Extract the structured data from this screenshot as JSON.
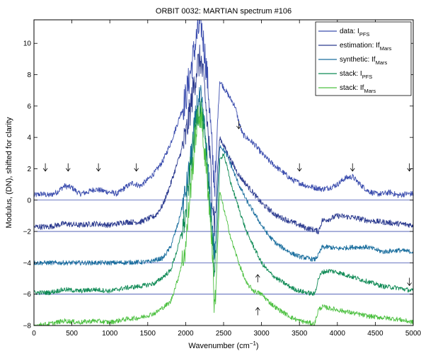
{
  "chart_data": {
    "type": "line",
    "title": "ORBIT 0032: MARTIAN spectrum #106",
    "xlabel": "Wavenumber (cm−1)",
    "xlabel_parts": {
      "main": "Wavenumber (cm",
      "sup": "−1",
      "close": ")"
    },
    "ylabel": "Modulus, (DN), shifted for clarity",
    "xlim": [
      0,
      5000
    ],
    "ylim": [
      -8,
      11.5
    ],
    "xticks": [
      0,
      500,
      1000,
      1500,
      2000,
      2500,
      3000,
      3500,
      4000,
      4500,
      5000
    ],
    "yticks": [
      -8,
      -6,
      -4,
      -2,
      0,
      2,
      4,
      6,
      8,
      10
    ],
    "grid": false,
    "legend_position": "top-right",
    "legend": [
      {
        "text": "data: I",
        "sub": "PFS",
        "color": "#3b4dae"
      },
      {
        "text": "estimation: If",
        "sub": "Mars",
        "color": "#2b3a8f"
      },
      {
        "text": "synthetic: If",
        "sub": "Mars",
        "color": "#1a6e9e"
      },
      {
        "text": "stack: I",
        "sub": "PFS",
        "color": "#0f8a55"
      },
      {
        "text": "stack: If",
        "sub": "Mars",
        "color": "#4cc040"
      }
    ],
    "baselines": [
      0,
      -2,
      -4,
      -6
    ],
    "baseline_color": "#3b4dae",
    "series": [
      {
        "color": "#3b4dae",
        "noise": 0.18,
        "x": [
          0,
          100,
          200,
          300,
          400,
          500,
          600,
          700,
          800,
          900,
          1000,
          1100,
          1200,
          1300,
          1400,
          1500,
          1600,
          1700,
          1800,
          1900,
          2000,
          2050,
          2100,
          2150,
          2200,
          2250,
          2300,
          2350,
          2380,
          2400,
          2420,
          2450,
          2500,
          2550,
          2600,
          2650,
          2700,
          2750,
          2800,
          2900,
          3000,
          3100,
          3200,
          3300,
          3400,
          3500,
          3600,
          3700,
          3800,
          3900,
          4000,
          4100,
          4200,
          4300,
          4400,
          4500,
          4600,
          4700,
          4800,
          4900,
          5000
        ],
        "y": [
          0.3,
          0.4,
          0.3,
          0.5,
          0.9,
          0.8,
          0.4,
          0.5,
          0.7,
          0.6,
          0.5,
          0.4,
          0.8,
          1.1,
          0.9,
          1.3,
          1.8,
          2.5,
          3.6,
          5.0,
          6.5,
          7.8,
          9.2,
          10.5,
          11.4,
          9.5,
          7.0,
          3.0,
          1.0,
          2.0,
          5.0,
          7.6,
          7.2,
          6.8,
          6.4,
          6.0,
          5.0,
          4.2,
          4.0,
          3.6,
          3.0,
          2.5,
          2.1,
          1.7,
          1.3,
          1.1,
          0.9,
          0.8,
          0.7,
          0.8,
          1.0,
          1.4,
          1.5,
          1.0,
          0.6,
          0.4,
          0.4,
          0.5,
          0.3,
          0.4,
          0.4
        ]
      },
      {
        "color": "#2b3a8f",
        "noise": 0.18,
        "x": [
          0,
          200,
          400,
          600,
          800,
          1000,
          1200,
          1400,
          1600,
          1700,
          1800,
          1900,
          2000,
          2050,
          2100,
          2150,
          2200,
          2250,
          2300,
          2350,
          2380,
          2400,
          2420,
          2450,
          2500,
          2550,
          2600,
          2700,
          2800,
          2900,
          3000,
          3100,
          3200,
          3300,
          3400,
          3500,
          3600,
          3700,
          3750,
          3800,
          3900,
          4000,
          4200,
          4400,
          4600,
          4800,
          5000
        ],
        "y": [
          -1.7,
          -1.7,
          -1.5,
          -1.6,
          -1.5,
          -1.6,
          -1.4,
          -1.4,
          -1.0,
          -0.3,
          1.0,
          2.5,
          4.0,
          5.5,
          7.0,
          8.5,
          9.0,
          7.0,
          4.0,
          0.5,
          -1.5,
          -0.5,
          2.0,
          4.0,
          3.5,
          3.0,
          2.5,
          1.6,
          1.0,
          0.4,
          -0.2,
          -0.6,
          -1.0,
          -1.2,
          -1.4,
          -1.6,
          -1.8,
          -1.9,
          -2.0,
          -1.3,
          -1.2,
          -1.0,
          -1.1,
          -1.3,
          -1.4,
          -1.5,
          -1.6
        ]
      },
      {
        "color": "#1a6e9e",
        "noise": 0.15,
        "x": [
          0,
          500,
          1000,
          1500,
          1700,
          1800,
          1900,
          2000,
          2050,
          2100,
          2150,
          2200,
          2250,
          2300,
          2350,
          2380,
          2400,
          2420,
          2450,
          2500,
          2550,
          2600,
          2700,
          2800,
          2900,
          3000,
          3100,
          3200,
          3300,
          3400,
          3500,
          3600,
          3700,
          3750,
          3800,
          3900,
          4000,
          4200,
          4400,
          4600,
          4800,
          5000
        ],
        "y": [
          -4.0,
          -4.0,
          -4.0,
          -3.95,
          -3.7,
          -3.0,
          -1.5,
          0.5,
          2.0,
          4.0,
          6.0,
          6.5,
          4.5,
          1.5,
          -1.5,
          -3.5,
          -2.0,
          0.5,
          3.5,
          3.2,
          2.8,
          2.2,
          1.0,
          0.0,
          -0.8,
          -1.6,
          -2.3,
          -2.8,
          -3.1,
          -3.4,
          -3.6,
          -3.7,
          -3.8,
          -3.5,
          -3.0,
          -3.0,
          -3.1,
          -3.0,
          -3.0,
          -3.3,
          -3.2,
          -3.3
        ]
      },
      {
        "color": "#0f8a55",
        "noise": 0.15,
        "x": [
          0,
          200,
          400,
          600,
          800,
          1000,
          1200,
          1400,
          1600,
          1800,
          1900,
          2000,
          2050,
          2100,
          2150,
          2200,
          2250,
          2300,
          2350,
          2380,
          2400,
          2420,
          2450,
          2500,
          2550,
          2600,
          2700,
          2800,
          2900,
          3000,
          3100,
          3200,
          3300,
          3400,
          3500,
          3600,
          3700,
          3750,
          3800,
          3900,
          4000,
          4200,
          4400,
          4600,
          4800,
          5000
        ],
        "y": [
          -5.9,
          -5.9,
          -5.7,
          -5.8,
          -5.7,
          -5.8,
          -5.6,
          -5.5,
          -5.3,
          -4.5,
          -3.0,
          -1.0,
          1.5,
          3.5,
          5.5,
          6.0,
          4.0,
          1.0,
          -2.0,
          -5.0,
          -3.5,
          -1.5,
          2.5,
          3.0,
          2.0,
          1.0,
          -0.5,
          -2.0,
          -3.0,
          -4.0,
          -4.6,
          -5.0,
          -5.3,
          -5.6,
          -5.8,
          -5.9,
          -6.0,
          -5.0,
          -4.6,
          -4.5,
          -4.6,
          -4.9,
          -5.2,
          -5.5,
          -5.6,
          -5.8
        ]
      },
      {
        "color": "#4cc040",
        "noise": 0.15,
        "x": [
          0,
          200,
          400,
          600,
          800,
          1000,
          1200,
          1400,
          1600,
          1800,
          1900,
          2000,
          2050,
          2100,
          2150,
          2200,
          2250,
          2300,
          2350,
          2380,
          2400,
          2420,
          2450,
          2500,
          2550,
          2600,
          2700,
          2800,
          2900,
          3000,
          3100,
          3200,
          3300,
          3400,
          3500,
          3600,
          3700,
          3750,
          3800,
          3900,
          4000,
          4200,
          4400,
          4600,
          4800,
          5000
        ],
        "y": [
          -8.0,
          -7.9,
          -7.7,
          -7.8,
          -7.7,
          -7.8,
          -7.6,
          -7.5,
          -7.2,
          -6.5,
          -5.0,
          -3.0,
          0.0,
          2.5,
          5.0,
          5.5,
          3.0,
          0.5,
          -3.0,
          -7.0,
          -5.5,
          -3.0,
          0.5,
          -0.5,
          -1.5,
          -2.5,
          -4.0,
          -5.3,
          -5.8,
          -6.0,
          -6.5,
          -6.9,
          -7.2,
          -7.5,
          -7.7,
          -7.8,
          -7.9,
          -7.0,
          -6.8,
          -6.9,
          -7.0,
          -7.2,
          -7.4,
          -7.5,
          -7.6,
          -7.8
        ]
      }
    ],
    "arrows": [
      {
        "x": 150,
        "y_tip": 1.85,
        "dir": "down"
      },
      {
        "x": 450,
        "y_tip": 1.85,
        "dir": "down"
      },
      {
        "x": 850,
        "y_tip": 1.85,
        "dir": "down"
      },
      {
        "x": 1350,
        "y_tip": 1.85,
        "dir": "down"
      },
      {
        "x": 2700,
        "y_tip": 4.55,
        "dir": "down"
      },
      {
        "x": 3500,
        "y_tip": 1.85,
        "dir": "down"
      },
      {
        "x": 4200,
        "y_tip": 1.85,
        "dir": "down"
      },
      {
        "x": 4950,
        "y_tip": 1.85,
        "dir": "down"
      },
      {
        "x": 4950,
        "y_tip": -5.45,
        "dir": "down"
      },
      {
        "x": 2950,
        "y_tip": -4.75,
        "dir": "up"
      },
      {
        "x": 2950,
        "y_tip": -6.85,
        "dir": "up"
      }
    ]
  }
}
